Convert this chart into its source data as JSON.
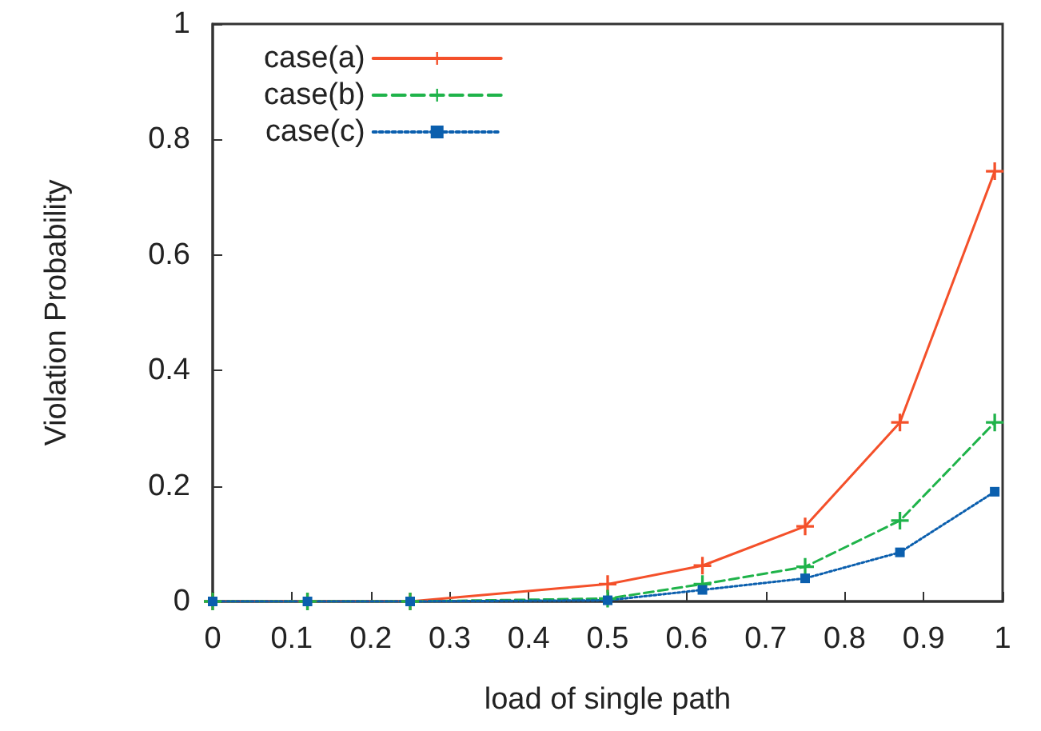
{
  "chart_data": {
    "type": "line",
    "xlabel": "load of single path",
    "ylabel": "Violation Probability",
    "x": [
      0,
      0.12,
      0.25,
      0.5,
      0.62,
      0.75,
      0.87,
      0.99
    ],
    "series": [
      {
        "name": "case(a)",
        "color": "#f4502a",
        "line_style": "solid",
        "marker": "cross",
        "values": [
          0,
          0,
          0,
          0.03,
          0.062,
          0.13,
          0.31,
          0.745
        ]
      },
      {
        "name": "case(b)",
        "color": "#1fb34a",
        "line_style": "dashed",
        "marker": "cross",
        "values": [
          0,
          0,
          0,
          0.005,
          0.03,
          0.06,
          0.14,
          0.31
        ]
      },
      {
        "name": "case(c)",
        "color": "#0b5fae",
        "line_style": "dotted",
        "marker": "square",
        "values": [
          0,
          0,
          0,
          0.002,
          0.02,
          0.04,
          0.085,
          0.19
        ]
      }
    ],
    "xlim": [
      0,
      1
    ],
    "xticks": [
      0,
      0.1,
      0.2,
      0.3,
      0.4,
      0.5,
      0.6,
      0.7,
      0.8,
      0.9,
      1
    ],
    "ylim": [
      0,
      1
    ],
    "yticks": [
      0,
      0.2,
      0.4,
      0.6,
      0.8,
      1
    ],
    "grid": false,
    "legend": "top left"
  }
}
